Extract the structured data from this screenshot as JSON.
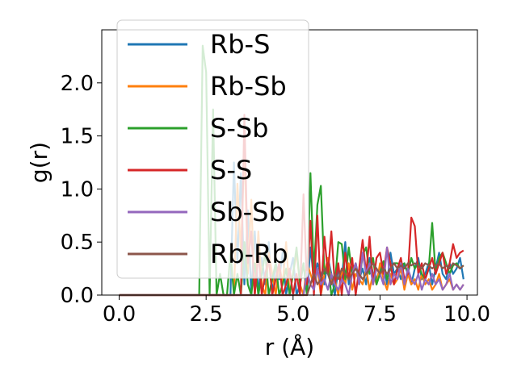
{
  "chart_data": {
    "type": "line",
    "xlabel": "r (Å)",
    "ylabel": "g(r)",
    "xlim": [
      -0.5,
      10.3
    ],
    "ylim": [
      0,
      2.5
    ],
    "xticks": [
      "0.0",
      "2.5",
      "5.0",
      "7.5",
      "10.0"
    ],
    "yticks": [
      "0.0",
      "0.5",
      "1.0",
      "1.5",
      "2.0"
    ],
    "legend_position": "top-left",
    "x": [
      0.0,
      0.1,
      0.2,
      0.3,
      0.4,
      0.5,
      0.6,
      0.7,
      0.8,
      0.9,
      1.0,
      1.1,
      1.2,
      1.3,
      1.4,
      1.5,
      1.6,
      1.7,
      1.8,
      1.9,
      2.0,
      2.1,
      2.2,
      2.3,
      2.4,
      2.5,
      2.6,
      2.7,
      2.8,
      2.9,
      3.0,
      3.1,
      3.2,
      3.3,
      3.4,
      3.5,
      3.6,
      3.7,
      3.8,
      3.9,
      4.0,
      4.1,
      4.2,
      4.3,
      4.4,
      4.5,
      4.6,
      4.7,
      4.8,
      4.9,
      5.0,
      5.1,
      5.2,
      5.3,
      5.4,
      5.5,
      5.6,
      5.7,
      5.8,
      5.9,
      6.0,
      6.1,
      6.2,
      6.3,
      6.4,
      6.5,
      6.6,
      6.7,
      6.8,
      6.9,
      7.0,
      7.1,
      7.2,
      7.3,
      7.4,
      7.5,
      7.6,
      7.7,
      7.8,
      7.9,
      8.0,
      8.1,
      8.2,
      8.3,
      8.4,
      8.5,
      8.6,
      8.7,
      8.8,
      8.9,
      9.0,
      9.1,
      9.2,
      9.3,
      9.4,
      9.5,
      9.6,
      9.7,
      9.8,
      9.9
    ],
    "series": [
      {
        "name": "Rb-S",
        "color": "#1f77b4",
        "values": [
          0,
          0,
          0,
          0,
          0,
          0,
          0,
          0,
          0,
          0,
          0,
          0,
          0,
          0,
          0,
          0,
          0,
          0,
          0,
          0,
          0,
          0,
          0,
          0,
          0,
          0,
          0,
          0,
          0,
          0,
          0,
          0,
          0,
          1.25,
          0.3,
          1.15,
          0.1,
          0.8,
          0.0,
          0.6,
          0.0,
          0.35,
          0.1,
          0.5,
          0.0,
          0.3,
          0.15,
          0.4,
          0.0,
          0.2,
          0.35,
          0.0,
          0.1,
          0.3,
          0.0,
          0.45,
          0.15,
          0.3,
          0.2,
          0.1,
          0.35,
          0.2,
          0.0,
          0.25,
          0.15,
          0.5,
          0.1,
          0.2,
          0.3,
          0.15,
          0.25,
          0.1,
          0.35,
          0.2,
          0.15,
          0.25,
          0.3,
          0.1,
          0.4,
          0.2,
          0.25,
          0.15,
          0.3,
          0.2,
          0.1,
          0.25,
          0.35,
          0.15,
          0.2,
          0.3,
          0.1,
          0.25,
          0.4,
          0.2,
          0.15,
          0.3,
          0.2,
          0.25,
          0.35,
          0.15
        ]
      },
      {
        "name": "Rb-Sb",
        "color": "#ff7f0e",
        "values": [
          0,
          0,
          0,
          0,
          0,
          0,
          0,
          0,
          0,
          0,
          0,
          0,
          0,
          0,
          0,
          0,
          0,
          0,
          0,
          0,
          0,
          0,
          0,
          0,
          0,
          0,
          0,
          0,
          0,
          0,
          0,
          0,
          0,
          0,
          1.05,
          0.4,
          1.4,
          0.2,
          0.9,
          0.0,
          0.6,
          0.1,
          0.0,
          0.4,
          0.2,
          0.0,
          0.3,
          0.1,
          0.5,
          0.0,
          0.2,
          0.4,
          0.1,
          0.0,
          0.3,
          0.2,
          0.1,
          0.25,
          0.0,
          0.2,
          0.35,
          0.1,
          0.15,
          0.0,
          0.25,
          0.1,
          0.3,
          0.05,
          0.2,
          0.15,
          0.1,
          0.25,
          0.05,
          0.2,
          0.1,
          0.3,
          0.15,
          0.05,
          0.2,
          0.1,
          0.15,
          0.25,
          0.05,
          0.2,
          0.1,
          0.15,
          0.05,
          0.2,
          0.1,
          0.15,
          0.05,
          0.1,
          0.2,
          0.05,
          0.1,
          0.15,
          0.05,
          0.1,
          0.05,
          0.1
        ]
      },
      {
        "name": "S-Sb",
        "color": "#2ca02c",
        "values": [
          0,
          0,
          0,
          0,
          0,
          0,
          0,
          0,
          0,
          0,
          0,
          0,
          0,
          0,
          0,
          0,
          0,
          0,
          0,
          0,
          0,
          0,
          0,
          0,
          2.35,
          2.1,
          0.0,
          1.75,
          0.0,
          0.2,
          0.0,
          0.0,
          0.4,
          0.0,
          0.2,
          0.0,
          0.5,
          0.1,
          0.0,
          0.3,
          0.0,
          0.2,
          0.4,
          0.0,
          0.15,
          0.3,
          0.0,
          0.1,
          0.25,
          0.0,
          0.2,
          0.45,
          0.1,
          0.3,
          0.0,
          1.15,
          0.2,
          0.85,
          1.03,
          0.2,
          0.3,
          0.0,
          0.1,
          0.5,
          0.48,
          0.15,
          0.45,
          0.2,
          0.3,
          0.1,
          0.38,
          0.45,
          0.2,
          0.35,
          0.1,
          0.2,
          0.32,
          0.15,
          0.25,
          0.3,
          0.3,
          0.28,
          0.3,
          0.2,
          0.35,
          0.25,
          0.3,
          0.2,
          0.15,
          0.25,
          0.68,
          0.2,
          0.35,
          0.4,
          0.3,
          0.2,
          0.28,
          0.3,
          0.25,
          0.28
        ]
      },
      {
        "name": "S-S",
        "color": "#d62728",
        "values": [
          0,
          0,
          0,
          0,
          0,
          0,
          0,
          0,
          0,
          0,
          0,
          0,
          0,
          0,
          0,
          0,
          0,
          0,
          0,
          0,
          0,
          0,
          0,
          0,
          0,
          0,
          0,
          0,
          0,
          0,
          0,
          0,
          0,
          0,
          0,
          0,
          1.7,
          0.3,
          0.6,
          0.0,
          0.4,
          0.0,
          0.2,
          0.35,
          0.0,
          0.15,
          0.3,
          0.0,
          0.1,
          0.25,
          0.0,
          0.2,
          0.0,
          0.95,
          0.1,
          0.7,
          0.0,
          0.75,
          0.0,
          0.55,
          0.2,
          0.6,
          0.1,
          0.3,
          0.0,
          0.4,
          0.15,
          0.35,
          0.0,
          0.25,
          0.52,
          0.2,
          0.55,
          0.1,
          0.35,
          0.4,
          0.2,
          0.45,
          0.3,
          0.1,
          0.25,
          0.35,
          0.15,
          0.2,
          0.73,
          0.65,
          0.2,
          0.3,
          0.15,
          0.25,
          0.35,
          0.2,
          0.3,
          0.4,
          0.2,
          0.3,
          0.48,
          0.35,
          0.4,
          0.42
        ]
      },
      {
        "name": "Sb-Sb",
        "color": "#9467bd",
        "values": [
          0,
          0,
          0,
          0,
          0,
          0,
          0,
          0,
          0,
          0,
          0,
          0,
          0,
          0,
          0,
          0,
          0,
          0,
          0,
          0,
          0,
          0,
          0,
          0,
          0,
          0,
          0,
          0,
          0,
          0,
          0,
          0,
          0,
          0,
          0,
          0,
          0,
          0,
          0,
          0,
          0,
          0,
          0,
          0,
          0,
          0,
          0,
          0,
          0,
          0,
          0,
          0,
          0,
          0,
          0.22,
          0.1,
          0.05,
          0.25,
          0.1,
          0.15,
          0.05,
          0.2,
          0.1,
          0.05,
          0.15,
          0.1,
          0.0,
          0.2,
          0.3,
          0.1,
          0.4,
          0.2,
          0.3,
          0.1,
          0.25,
          0.2,
          0.1,
          0.45,
          0.1,
          0.2,
          0.15,
          0.3,
          0.1,
          0.25,
          0.15,
          0.1,
          0.2,
          0.05,
          0.15,
          0.1,
          0.2,
          0.1,
          0.15,
          0.05,
          0.1,
          0.2,
          0.05,
          0.1,
          0.05,
          0.1
        ]
      },
      {
        "name": "Rb-Rb",
        "color": "#8c564b",
        "values": [
          0,
          0,
          0,
          0,
          0,
          0,
          0,
          0,
          0,
          0,
          0,
          0,
          0,
          0,
          0,
          0,
          0,
          0,
          0,
          0,
          0,
          0,
          0,
          0,
          0,
          0,
          0,
          0,
          0,
          0,
          0,
          0,
          0,
          0,
          0,
          0,
          0,
          0,
          0,
          0,
          0,
          0,
          0,
          0,
          0,
          0,
          0,
          0,
          0,
          0,
          0,
          0,
          0,
          0,
          0,
          0.1,
          0.2,
          0.1,
          0.15,
          0.25,
          0.2,
          0.1,
          0.2,
          0.15,
          0.25,
          0.2,
          0.15,
          0.2,
          0.25,
          0.2,
          0.15,
          0.2,
          0.25,
          0.3,
          0.25,
          0.2,
          0.25,
          0.2,
          0.25,
          0.3,
          0.25,
          0.28,
          0.25,
          0.3,
          0.28,
          0.3,
          0.28,
          0.25,
          0.3,
          0.28,
          0.25,
          0.28,
          0.3,
          0.25,
          0.28,
          0.25,
          0.3,
          0.28,
          0.25,
          0.28
        ]
      }
    ]
  }
}
